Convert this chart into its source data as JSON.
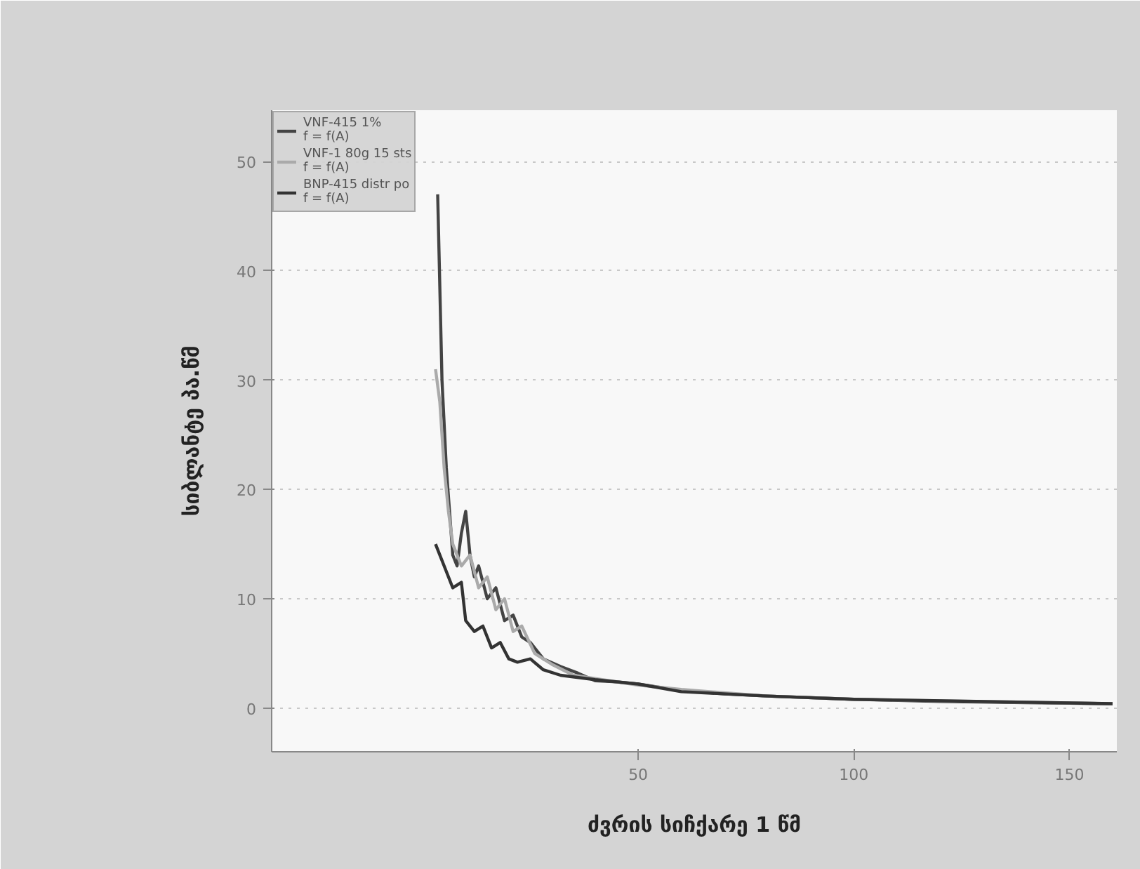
{
  "chart_data": {
    "type": "line",
    "xlabel": "ძვრის სიჩქარე 1 წმ",
    "ylabel": "სიბლანტე პა.წმ",
    "xlim": [
      -35,
      161
    ],
    "ylim": [
      -4,
      54.7
    ],
    "xticks": [
      50,
      100,
      150
    ],
    "yticks": [
      0,
      10,
      20,
      30,
      40,
      50
    ],
    "grid": "y",
    "legend": "top left",
    "marker": "none",
    "line_style": "solid",
    "series": [
      {
        "name": "VNF-415 1%\nf = f(A)",
        "color": "#444444",
        "x": [
          3.5,
          4.5,
          5.5,
          7,
          8,
          9,
          10,
          11,
          12,
          13,
          15,
          17,
          19,
          21,
          23,
          25,
          28,
          32,
          36,
          40,
          45,
          50,
          60,
          70,
          80,
          100,
          120,
          140,
          160
        ],
        "values": [
          47,
          30,
          22,
          14,
          13,
          16,
          18,
          14,
          12,
          13,
          10,
          11,
          8,
          8.5,
          6.5,
          6,
          4.5,
          3.8,
          3.2,
          2.5,
          2.4,
          2.2,
          1.6,
          1.3,
          1.1,
          0.8,
          0.6,
          0.5,
          0.4
        ]
      },
      {
        "name": "VNF-1 80g 15 sts\nf = f(A)",
        "color": "#aaaaaa",
        "x": [
          3,
          4,
          5,
          6,
          7,
          9,
          11,
          13,
          15,
          17,
          19,
          21,
          23,
          26,
          30,
          35,
          40,
          50,
          60,
          80,
          100,
          130,
          160
        ],
        "values": [
          31,
          28,
          22,
          18,
          15,
          13,
          14,
          11,
          12,
          9,
          10,
          7,
          7.5,
          5,
          4,
          3,
          2.7,
          2.1,
          1.7,
          1.1,
          0.8,
          0.6,
          0.4
        ]
      },
      {
        "name": "BNP-415 distr po\nf = f(A)",
        "color": "#333333",
        "x": [
          3,
          5,
          7,
          9,
          10,
          12,
          14,
          16,
          18,
          20,
          22,
          25,
          28,
          32,
          40,
          50,
          60,
          80,
          100,
          160
        ],
        "values": [
          15,
          13,
          11,
          11.5,
          8,
          7,
          7.5,
          5.5,
          6,
          4.5,
          4.2,
          4.5,
          3.5,
          3,
          2.6,
          2.2,
          1.5,
          1.1,
          0.8,
          0.4
        ]
      }
    ]
  }
}
